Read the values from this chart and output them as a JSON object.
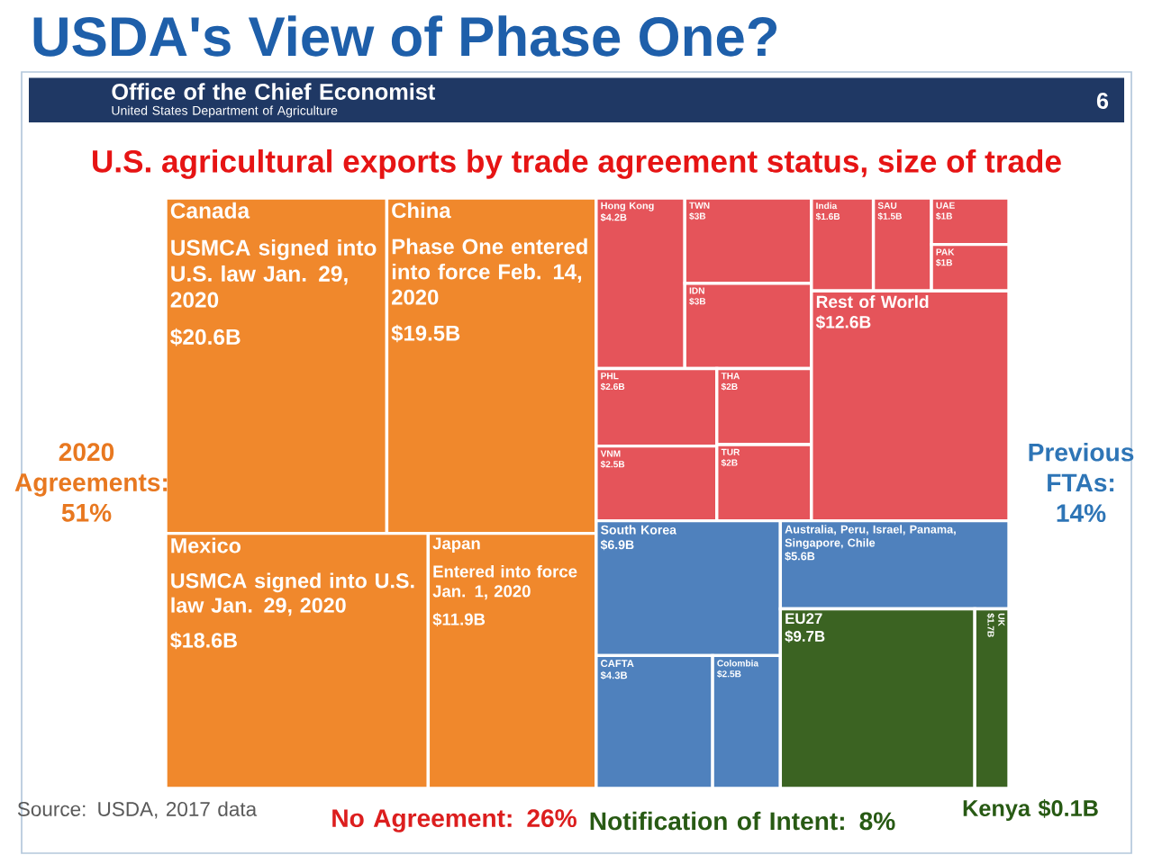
{
  "chart_data": {
    "type": "other",
    "title": "USDA's View of Phase One?",
    "subtitle": "U.S. agricultural exports by trade agreement status, size of trade",
    "categories": [
      "Canada",
      "China",
      "Mexico",
      "Japan",
      "Hong Kong",
      "TWN",
      "IDN",
      "PHL",
      "VNM",
      "THA",
      "TUR",
      "India",
      "SAU",
      "UAE",
      "PAK",
      "Rest of World",
      "South Korea",
      "CAFTA",
      "Colombia",
      "Australia, Peru, Israel, Panama, Singapore, Chile",
      "EU27",
      "UK"
    ],
    "values": [
      20.6,
      19.5,
      18.6,
      11.9,
      4.2,
      3,
      3,
      2.6,
      2.5,
      2,
      2,
      1.6,
      1.5,
      1,
      1,
      12.6,
      6.9,
      4.3,
      2.5,
      5.6,
      9.7,
      1.7
    ],
    "value_labels": [
      "$20.6B",
      "$19.5B",
      "$18.6B",
      "$11.9B",
      "$4.2B",
      "$3B",
      "$3B",
      "$2.6B",
      "$2.5B",
      "$2B",
      "$2B",
      "$1.6B",
      "$1.5B",
      "$1B",
      "$1B",
      "$12.6B",
      "$6.9B",
      "$4.3B",
      "$2.5B",
      "$5.6B",
      "$9.7B",
      "$1.7B"
    ],
    "colors": [
      "#f0882c",
      "#f0882c",
      "#f0882c",
      "#f0882c",
      "#e5545a",
      "#e5545a",
      "#e5545a",
      "#e5545a",
      "#e5545a",
      "#e5545a",
      "#e5545a",
      "#e5545a",
      "#e5545a",
      "#e5545a",
      "#e5545a",
      "#e5545a",
      "#4f81bd",
      "#4f81bd",
      "#4f81bd",
      "#4f81bd",
      "#3b6322",
      "#3b6322"
    ],
    "annotations": [
      "2020 Agreements: 51%",
      "Previous FTAs: 14%",
      "No Agreement: 26%",
      "Notification of Intent: 8%",
      "Kenya $0.1B",
      "Source: USDA, 2017 data",
      "Office of the Chief Economist",
      "United States Department of Agriculture",
      "6",
      {
        "text": "USMCA signed into U.S. law Jan. 29, 2020",
        "x": "Canada"
      },
      {
        "text": "Phase One entered into force Feb. 14, 2020",
        "x": "China"
      },
      {
        "text": "USMCA signed into U.S. law Jan. 29, 2020",
        "x": "Mexico"
      },
      {
        "text": "Entered into force Jan. 1, 2020",
        "x": "Japan"
      }
    ]
  }
}
